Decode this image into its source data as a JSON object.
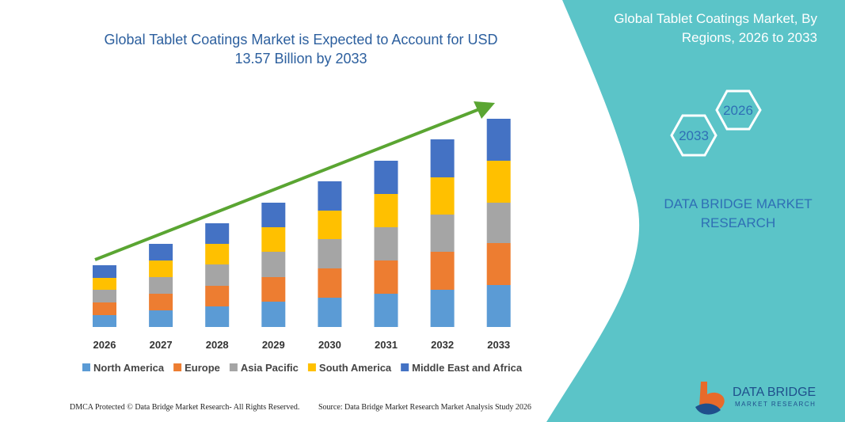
{
  "chart_data": {
    "type": "bar",
    "stacked": true,
    "title": "Global Tablet Coatings Market is Expected to Account for USD 13.57 Billion by 2033",
    "categories": [
      "2026",
      "2027",
      "2028",
      "2029",
      "2030",
      "2031",
      "2032",
      "2033"
    ],
    "series": [
      {
        "name": "North America",
        "color": "#5b9bd5",
        "values": [
          15,
          21,
          26,
          32,
          37,
          42,
          47,
          53
        ]
      },
      {
        "name": "Europe",
        "color": "#ed7d31",
        "values": [
          16,
          21,
          26,
          31,
          37,
          42,
          48,
          53
        ]
      },
      {
        "name": "Asia Pacific",
        "color": "#a5a5a5",
        "values": [
          16,
          21,
          27,
          32,
          37,
          42,
          47,
          51
        ]
      },
      {
        "name": "South America",
        "color": "#ffc000",
        "values": [
          15,
          21,
          26,
          31,
          36,
          42,
          47,
          53
        ]
      },
      {
        "name": "Middle East and Africa",
        "color": "#4472c4",
        "values": [
          16,
          21,
          26,
          31,
          37,
          42,
          48,
          53
        ]
      }
    ],
    "ylim": [
      0,
      263
    ]
  },
  "panel": {
    "title": "Global Tablet Coatings Market, By Regions, 2026 to 2033",
    "hex_labels": [
      "2026",
      "2033"
    ],
    "brand_lines": [
      "DATA BRIDGE MARKET",
      "RESEARCH"
    ],
    "logo_title": "DATA BRIDGE",
    "logo_subtitle": "MARKET RESEARCH"
  },
  "footer": {
    "left": "DMCA Protected © Data Bridge Market Research- All Rights Reserved.",
    "right": "Source: Data Bridge Market Research Market Analysis Study 2026"
  }
}
